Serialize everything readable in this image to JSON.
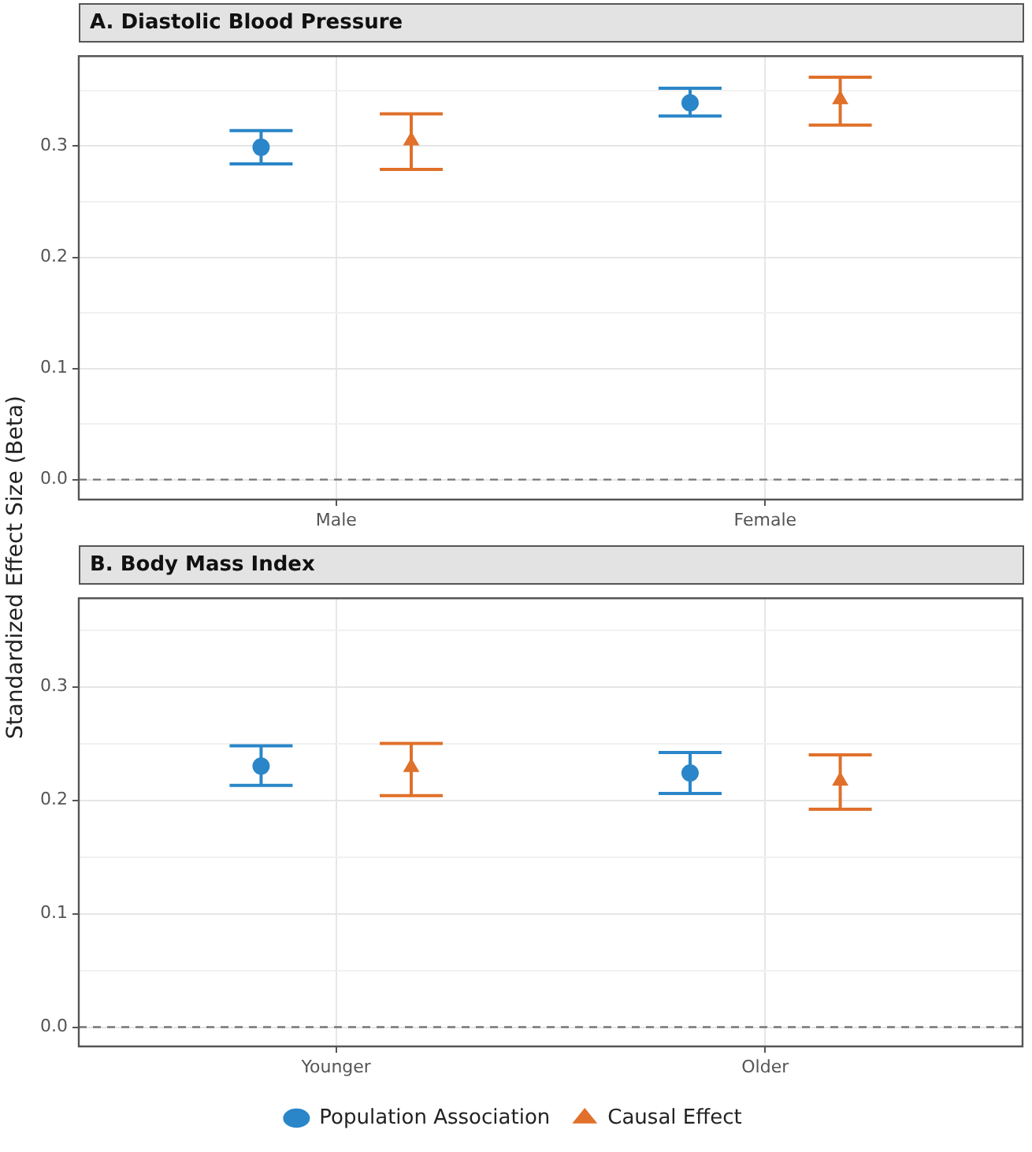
{
  "chart_data": [
    {
      "type": "scatter",
      "title": "A. Diastolic Blood Pressure",
      "ylabel": "Standardized Effect Size (Beta)",
      "categories": [
        "Male",
        "Female"
      ],
      "series": [
        {
          "color": "#2a86c8",
          "marker": "circle",
          "values": [
            0.299,
            0.339
          ],
          "errors": [
            [
              0.284,
              0.314
            ],
            [
              0.327,
              0.352
            ]
          ]
        },
        {
          "color": "#e0702a",
          "marker": "triangle",
          "values": [
            0.305,
            0.342
          ],
          "errors": [
            [
              0.279,
              0.329
            ],
            [
              0.319,
              0.362
            ]
          ]
        }
      ],
      "ylim": [
        -0.018,
        0.381
      ],
      "yticks": [
        {
          "value": 0,
          "label": "0.0"
        },
        {
          "value": 0.05,
          "label": null
        },
        {
          "value": 0.1,
          "label": "0.1"
        },
        {
          "value": 0.15,
          "label": null
        },
        {
          "value": 0.2,
          "label": "0.2"
        },
        {
          "value": 0.25,
          "label": null
        },
        {
          "value": 0.3,
          "label": "0.3"
        },
        {
          "value": 0.35,
          "label": null
        }
      ],
      "grid": true,
      "legend": false,
      "ref_lines": [
        {
          "axis": "y",
          "value": 0,
          "line_style": "dashed",
          "color": "#777777"
        }
      ]
    },
    {
      "type": "scatter",
      "title": "B. Body Mass Index",
      "categories": [
        "Younger",
        "Older"
      ],
      "series": [
        {
          "name": "Population Association",
          "color": "#2a86c8",
          "marker": "circle",
          "values": [
            0.23,
            0.224
          ],
          "errors": [
            [
              0.213,
              0.248
            ],
            [
              0.206,
              0.242
            ]
          ]
        },
        {
          "name": "Causal Effect",
          "color": "#e0702a",
          "marker": "triangle",
          "values": [
            0.229,
            0.217
          ],
          "errors": [
            [
              0.204,
              0.25
            ],
            [
              0.192,
              0.24
            ]
          ]
        }
      ],
      "ylim": [
        -0.017,
        0.378
      ],
      "yticks": [
        {
          "value": 0,
          "label": "0.0"
        },
        {
          "value": 0.05,
          "label": null
        },
        {
          "value": 0.1,
          "label": "0.1"
        },
        {
          "value": 0.15,
          "label": null
        },
        {
          "value": 0.2,
          "label": "0.2"
        },
        {
          "value": 0.25,
          "label": null
        },
        {
          "value": 0.3,
          "label": "0.3"
        },
        {
          "value": 0.35,
          "label": null
        }
      ],
      "grid": true,
      "legend": "bottom",
      "ref_lines": [
        {
          "axis": "y",
          "value": 0,
          "line_style": "dashed",
          "color": "#777777"
        }
      ]
    }
  ]
}
